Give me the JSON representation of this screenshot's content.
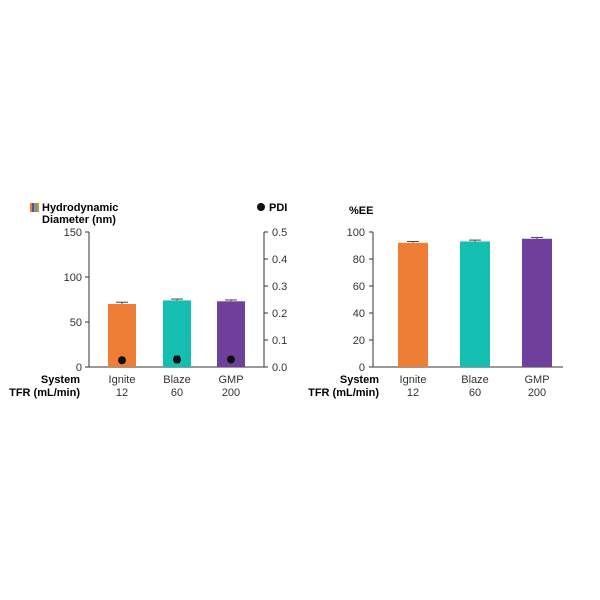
{
  "chart_data": [
    {
      "type": "bar",
      "legend": {
        "bar_label_line1": "Hydrodynamic",
        "bar_label_line2": "Diameter (nm)",
        "point_label": "PDI"
      },
      "row_labels": {
        "system": "System",
        "tfr": "TFR (mL/min)"
      },
      "categories": [
        "Ignite",
        "Blaze",
        "GMP"
      ],
      "tfr_values": [
        "12",
        "60",
        "200"
      ],
      "colors": [
        "#EE7D36",
        "#14BEB1",
        "#6F3F9C"
      ],
      "series": [
        {
          "name": "Hydrodynamic Diameter (nm)",
          "axis": "left",
          "values": [
            70,
            74,
            73
          ],
          "errors": [
            2,
            1.5,
            1.5
          ]
        },
        {
          "name": "PDI",
          "axis": "right",
          "values": [
            0.025,
            0.028,
            0.028
          ],
          "errors": [
            0.006,
            0.012,
            0.008
          ]
        }
      ],
      "ylim_left": [
        0,
        150
      ],
      "yticks_left": [
        0,
        50,
        100,
        150
      ],
      "ylim_right": [
        0,
        0.5
      ],
      "yticks_right": [
        "0.0",
        "0.1",
        "0.2",
        "0.3",
        "0.4",
        "0.5"
      ],
      "grid": false
    },
    {
      "type": "bar",
      "ylabel": "%EE",
      "row_labels": {
        "system": "System",
        "tfr": "TFR (mL/min)"
      },
      "categories": [
        "Ignite",
        "Blaze",
        "GMP"
      ],
      "tfr_values": [
        "12",
        "60",
        "200"
      ],
      "colors": [
        "#EE7D36",
        "#14BEB1",
        "#6F3F9C"
      ],
      "series": [
        {
          "name": "%EE",
          "values": [
            92,
            93,
            95
          ],
          "errors": [
            1,
            1,
            1
          ]
        }
      ],
      "ylim": [
        0,
        100
      ],
      "yticks": [
        0,
        20,
        40,
        60,
        80,
        100
      ],
      "grid": false
    }
  ]
}
